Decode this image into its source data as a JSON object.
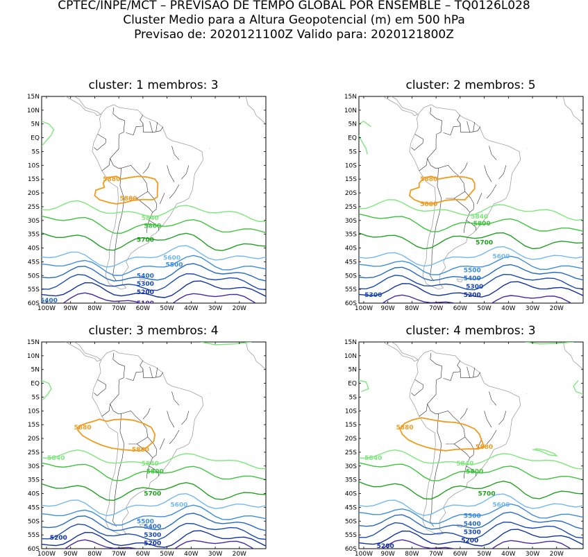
{
  "header": {
    "line1": "CPTEC/INPE/MCT – PREVISAO DE TEMPO GLOBAL POR ENSEMBLE – TQ0126L028",
    "line2": "Cluster Medio para a Altura Geopotencial (m) em 500 hPa",
    "line3": "Previsao de: 2020121100Z    Valido para: 2020121800Z"
  },
  "axis": {
    "lat_labels": [
      "15N",
      "10N",
      "5N",
      "EQ",
      "5S",
      "10S",
      "15S",
      "20S",
      "25S",
      "30S",
      "35S",
      "40S",
      "45S",
      "50S",
      "55S",
      "60S"
    ],
    "lon_labels": [
      "100W",
      "90W",
      "80W",
      "70W",
      "60W",
      "50W",
      "40W",
      "30W",
      "20W"
    ]
  },
  "colors": {
    "c5880": "#f29a1c",
    "c5840": "#7ce87a",
    "c5800": "#3cc43c",
    "c5700": "#20a020",
    "c5600": "#74b8f0",
    "c5500": "#3c8ce0",
    "c5400": "#2468c8",
    "c5300": "#1848b4",
    "c5200": "#1030a0",
    "c5100": "#4428a8",
    "coast": "#a0a0a0",
    "border": "#2a2a2a"
  },
  "clusters": [
    {
      "title": "cluster: 1   membros: 3",
      "labels": [
        {
          "text": "5880",
          "lat": -15,
          "lon": -73,
          "level": "c5880"
        },
        {
          "text": "5880",
          "lat": -22,
          "lon": -66,
          "level": "c5880"
        },
        {
          "text": "5840",
          "lat": -29,
          "lon": -57,
          "level": "c5840"
        },
        {
          "text": "5800",
          "lat": -32,
          "lon": -56,
          "level": "c5800"
        },
        {
          "text": "5700",
          "lat": -37,
          "lon": -59,
          "level": "c5700"
        },
        {
          "text": "5600",
          "lat": -43.5,
          "lon": -48,
          "level": "c5600"
        },
        {
          "text": "5500",
          "lat": -46,
          "lon": -47,
          "level": "c5500"
        },
        {
          "text": "5400",
          "lat": -50,
          "lon": -59,
          "level": "c5400"
        },
        {
          "text": "5300",
          "lat": -53,
          "lon": -59,
          "level": "c5300"
        },
        {
          "text": "5200",
          "lat": -56,
          "lon": -59,
          "level": "c5200"
        },
        {
          "text": "5400",
          "lat": -59,
          "lon": -99,
          "level": "c5400"
        },
        {
          "text": "5100",
          "lat": -60,
          "lon": -59,
          "level": "c5100"
        }
      ]
    },
    {
      "title": "cluster: 2   membros: 5",
      "labels": [
        {
          "text": "5880",
          "lat": -15,
          "lon": -73,
          "level": "c5880"
        },
        {
          "text": "5880",
          "lat": -24,
          "lon": -73,
          "level": "c5880"
        },
        {
          "text": "5840",
          "lat": -28.5,
          "lon": -52,
          "level": "c5840"
        },
        {
          "text": "5800",
          "lat": -31,
          "lon": -51,
          "level": "c5800"
        },
        {
          "text": "5700",
          "lat": -38,
          "lon": -50,
          "level": "c5700"
        },
        {
          "text": "5600",
          "lat": -43,
          "lon": -43,
          "level": "c5600"
        },
        {
          "text": "5500",
          "lat": -48,
          "lon": -55,
          "level": "c5500"
        },
        {
          "text": "5400",
          "lat": -51,
          "lon": -55,
          "level": "c5400"
        },
        {
          "text": "5300",
          "lat": -54,
          "lon": -54,
          "level": "c5300"
        },
        {
          "text": "5200",
          "lat": -57,
          "lon": -55,
          "level": "c5200"
        },
        {
          "text": "5300",
          "lat": -57,
          "lon": -96,
          "level": "c5300"
        }
      ]
    },
    {
      "title": "cluster: 3   membros: 4",
      "labels": [
        {
          "text": "5880",
          "lat": -16,
          "lon": -85,
          "level": "c5880"
        },
        {
          "text": "5880",
          "lat": -24,
          "lon": -61,
          "level": "c5880"
        },
        {
          "text": "5840",
          "lat": -27,
          "lon": -96,
          "level": "c5840"
        },
        {
          "text": "5840",
          "lat": -29,
          "lon": -57,
          "level": "c5840"
        },
        {
          "text": "5800",
          "lat": -32,
          "lon": -55,
          "level": "c5800"
        },
        {
          "text": "5700",
          "lat": -40,
          "lon": -56,
          "level": "c5700"
        },
        {
          "text": "5600",
          "lat": -44,
          "lon": -45,
          "level": "c5600"
        },
        {
          "text": "5500",
          "lat": -50,
          "lon": -59,
          "level": "c5500"
        },
        {
          "text": "5400",
          "lat": -52,
          "lon": -56,
          "level": "c5400"
        },
        {
          "text": "5300",
          "lat": -55,
          "lon": -56,
          "level": "c5300"
        },
        {
          "text": "5200",
          "lat": -58,
          "lon": -56,
          "level": "c5200"
        },
        {
          "text": "5200",
          "lat": -56,
          "lon": -95,
          "level": "c5200"
        }
      ]
    },
    {
      "title": "cluster: 4   membros: 3",
      "labels": [
        {
          "text": "5880",
          "lat": -16,
          "lon": -83,
          "level": "c5880"
        },
        {
          "text": "5880",
          "lat": -23,
          "lon": -50,
          "level": "c5880"
        },
        {
          "text": "5840",
          "lat": -27,
          "lon": -96,
          "level": "c5840"
        },
        {
          "text": "5840",
          "lat": -29,
          "lon": -58,
          "level": "c5840"
        },
        {
          "text": "5800",
          "lat": -32,
          "lon": -54,
          "level": "c5800"
        },
        {
          "text": "5700",
          "lat": -40,
          "lon": -49,
          "level": "c5700"
        },
        {
          "text": "5600",
          "lat": -44,
          "lon": -43,
          "level": "c5600"
        },
        {
          "text": "5500",
          "lat": -48,
          "lon": -55,
          "level": "c5500"
        },
        {
          "text": "5400",
          "lat": -51,
          "lon": -55,
          "level": "c5400"
        },
        {
          "text": "5300",
          "lat": -54,
          "lon": -55,
          "level": "c5300"
        },
        {
          "text": "5200",
          "lat": -57,
          "lon": -56,
          "level": "c5200"
        },
        {
          "text": "5200",
          "lat": -59,
          "lon": -91,
          "level": "c5200"
        }
      ]
    }
  ]
}
